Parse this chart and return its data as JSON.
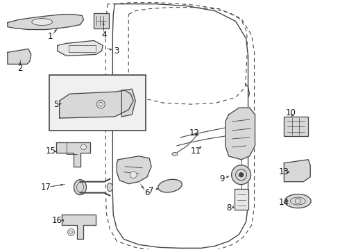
{
  "bg_color": "#ffffff",
  "fig_width": 4.9,
  "fig_height": 3.6,
  "dpi": 100,
  "line_color": "#444444",
  "label_fontsize": 8.5,
  "part_fill": "#d8d8d8",
  "part_fill_light": "#e8e8e8"
}
